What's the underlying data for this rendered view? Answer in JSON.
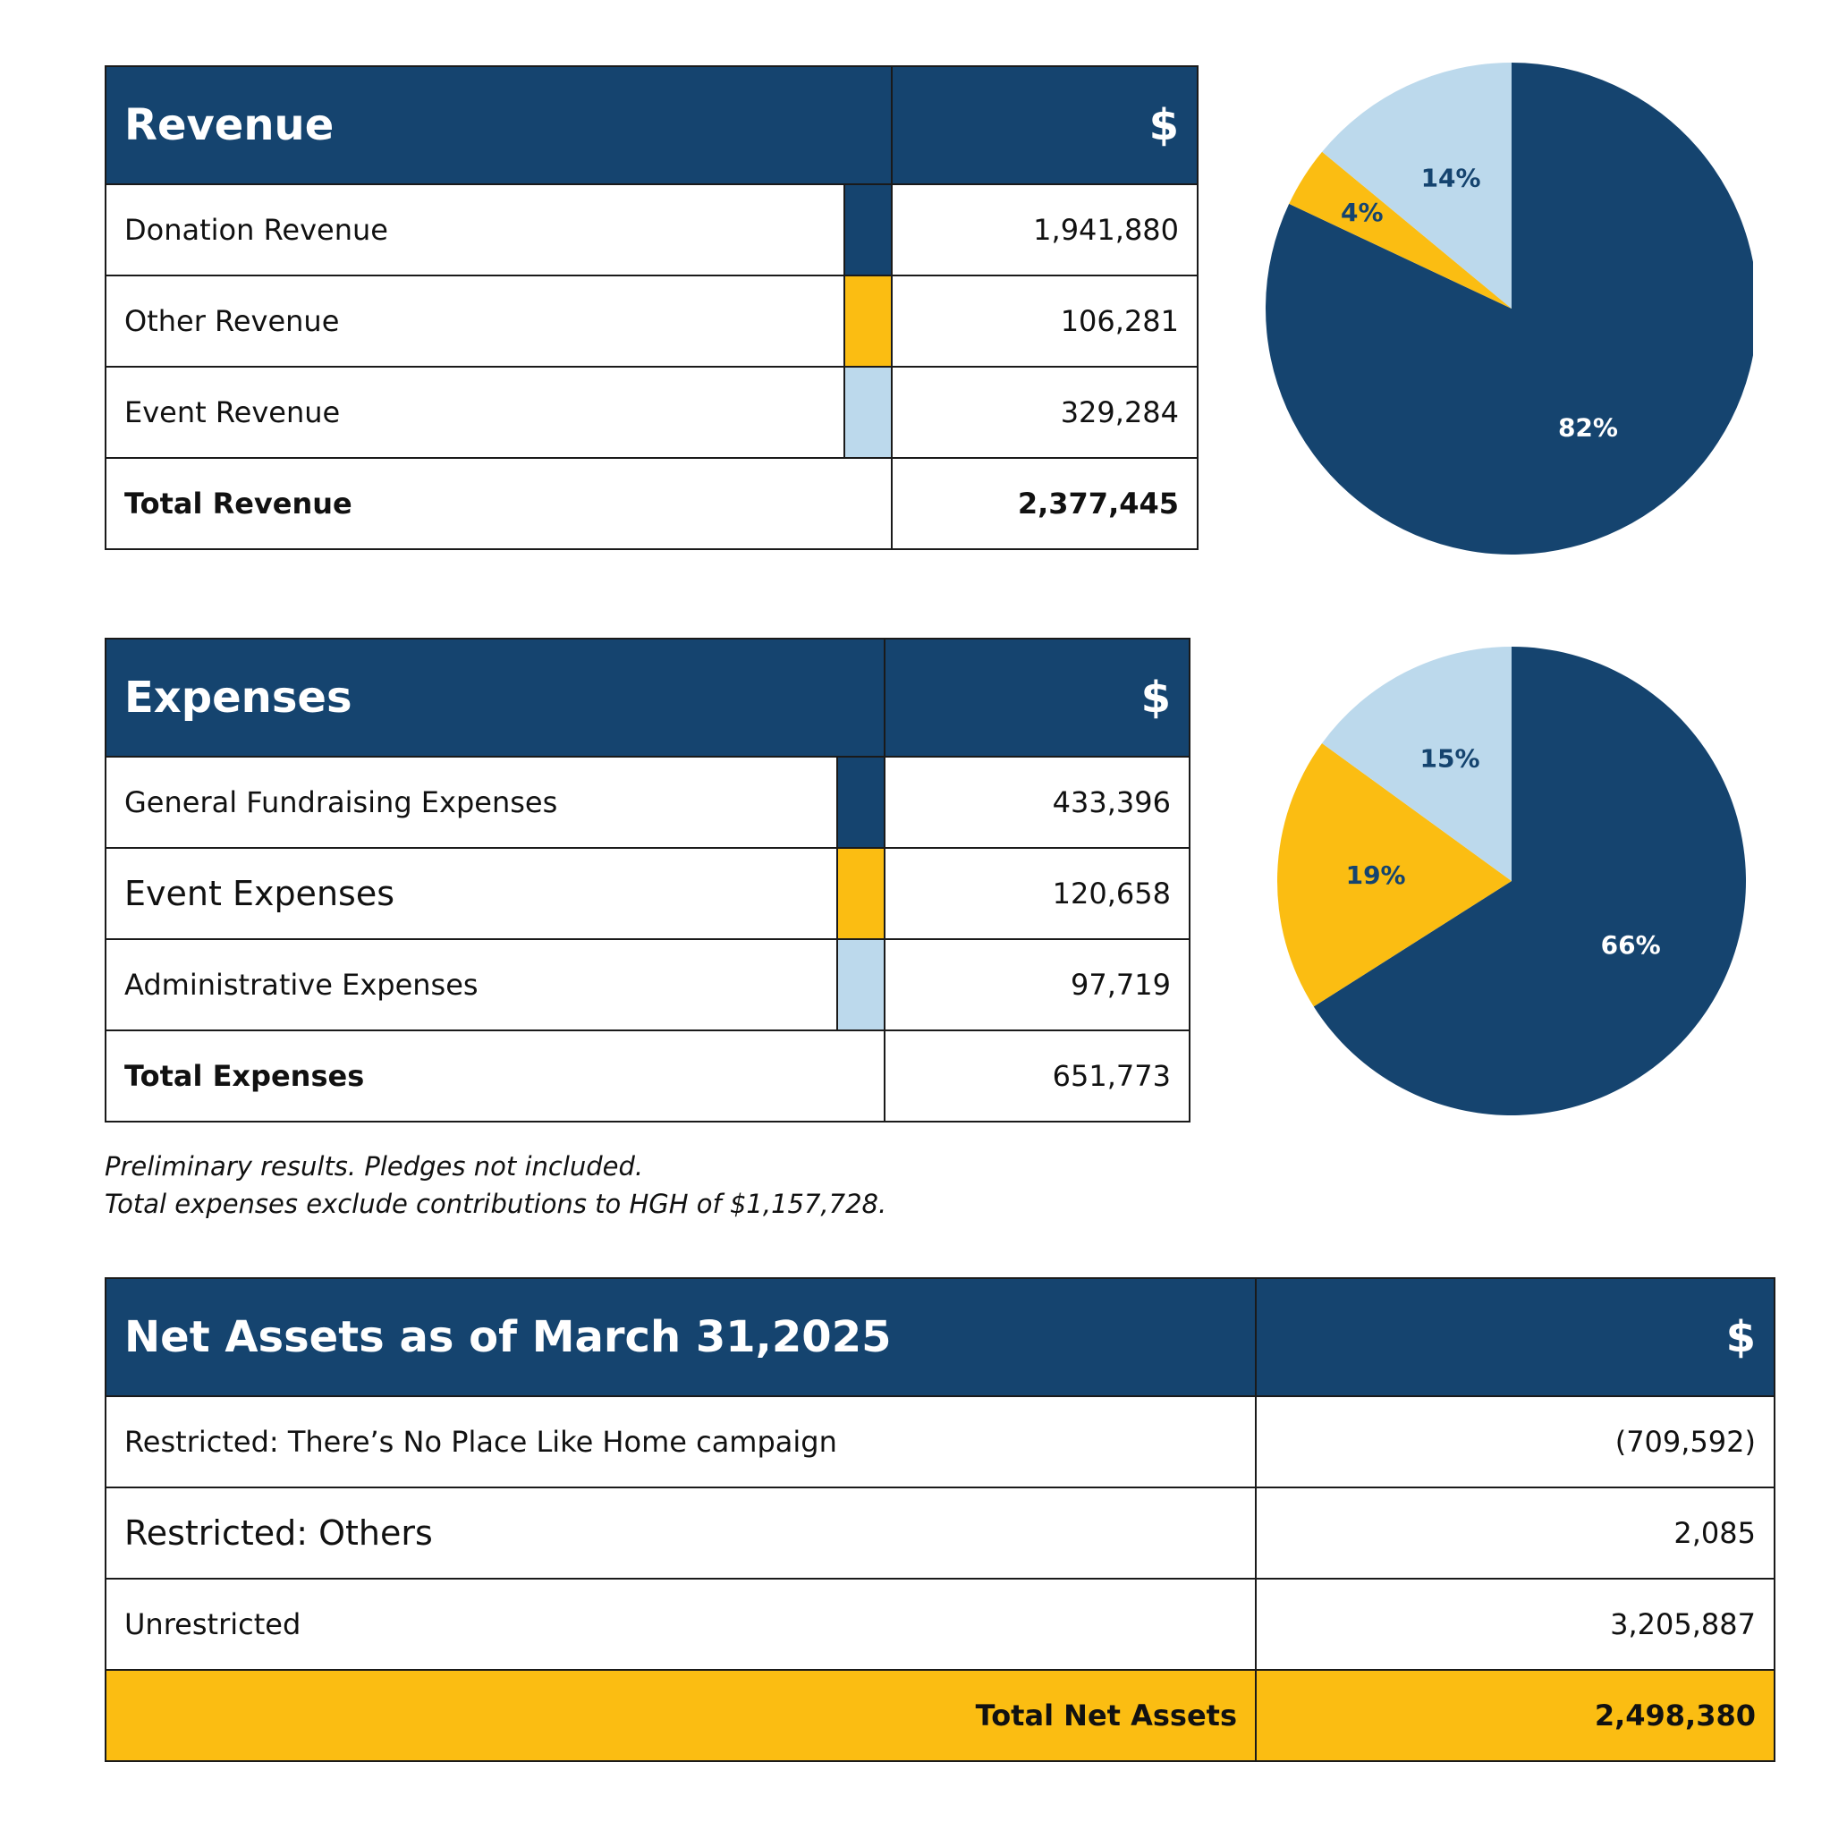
{
  "colors": {
    "navy": "#15446f",
    "gold": "#fbbd12",
    "light_blue": "#bcd9ec"
  },
  "revenue": {
    "title": "Revenue",
    "currency": "$",
    "rows": [
      {
        "label": "Donation Revenue",
        "value": "1,941,880",
        "color": "#15446f"
      },
      {
        "label": "Other Revenue",
        "value": "106,281",
        "color": "#fbbd12"
      },
      {
        "label": "Event Revenue",
        "value": "329,284",
        "color": "#bcd9ec"
      }
    ],
    "total_label": "Total Revenue",
    "total_value": "2,377,445"
  },
  "expenses": {
    "title": "Expenses",
    "currency": "$",
    "rows": [
      {
        "label": "General Fundraising Expenses",
        "value": "433,396",
        "color": "#15446f"
      },
      {
        "label": "Event Expenses",
        "value": "120,658",
        "color": "#fbbd12"
      },
      {
        "label": "Administrative Expenses",
        "value": "97,719",
        "color": "#bcd9ec"
      }
    ],
    "total_label": "Total Expenses",
    "total_value": "651,773"
  },
  "notes": {
    "line1": "Preliminary results. Pledges not included.",
    "line2": "Total expenses exclude contributions to HGH of $1,157,728."
  },
  "net_assets": {
    "title": "Net Assets as of March 31,2025",
    "currency": "$",
    "rows": [
      {
        "label": "Restricted: There’s No Place Like Home campaign",
        "value": "(709,592)"
      },
      {
        "label": "Restricted: Others",
        "value": "2,085"
      },
      {
        "label": "Unrestricted",
        "value": "3,205,887"
      }
    ],
    "total_label": "Total Net Assets",
    "total_value": "2,498,380"
  },
  "chart_data": [
    {
      "type": "pie",
      "categories": [
        "Donation Revenue",
        "Other Revenue",
        "Event Revenue"
      ],
      "values": [
        82,
        4,
        14
      ],
      "labels": [
        "82%",
        "4%",
        "14%"
      ],
      "colors": [
        "#15446f",
        "#fbbd12",
        "#bcd9ec"
      ],
      "label_colors": [
        "#ffffff",
        "#15446f",
        "#15446f"
      ]
    },
    {
      "type": "pie",
      "categories": [
        "General Fundraising Expenses",
        "Event Expenses",
        "Administrative Expenses"
      ],
      "values": [
        66,
        19,
        15
      ],
      "labels": [
        "66%",
        "19%",
        "15%"
      ],
      "colors": [
        "#15446f",
        "#fbbd12",
        "#bcd9ec"
      ],
      "label_colors": [
        "#ffffff",
        "#15446f",
        "#15446f"
      ]
    }
  ]
}
